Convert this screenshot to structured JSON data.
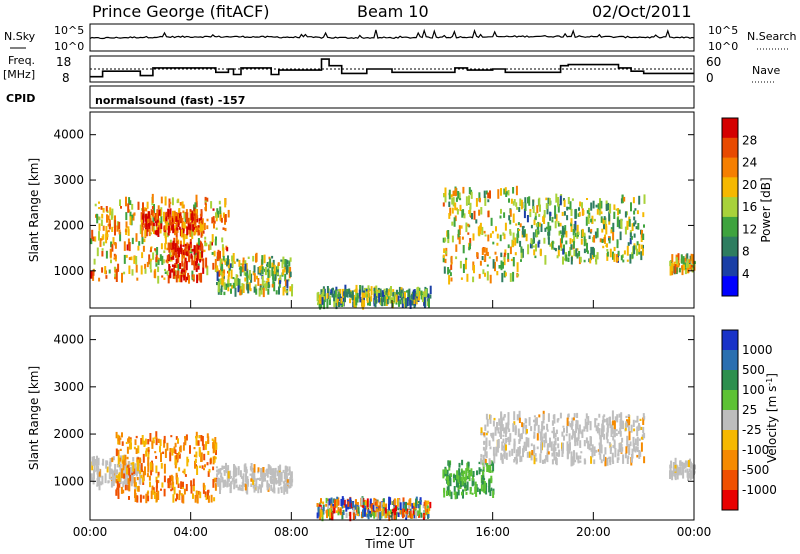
{
  "header": {
    "station": "Prince George (fitACF)",
    "beam": "Beam 10",
    "date": "02/Oct/2011"
  },
  "aux": {
    "nsky_label": "N.Sky",
    "nsearch_label": "N.Search",
    "noise_ticks_left": [
      "10^5",
      "10^0"
    ],
    "noise_ticks_right": [
      "10^5",
      "10^0"
    ],
    "freq_label_1": "Freq.",
    "freq_label_2": "[MHz]",
    "freq_ticks": [
      "18",
      "8"
    ],
    "nave_label": "Nave",
    "nave_ticks": [
      "60",
      "0"
    ],
    "cpid_label": "CPID",
    "cpid_text": "normalsound (fast) -157"
  },
  "colors": {
    "power_scale": [
      "#0000ff",
      "#1a3fa6",
      "#2e7d60",
      "#3ea33e",
      "#a8d23a",
      "#f5b800",
      "#f57f00",
      "#e84a00",
      "#d40000"
    ],
    "velocity_scale": [
      "#1933c8",
      "#2a6fb0",
      "#2d8f4e",
      "#5ec234",
      "#bdbdbd",
      "#f5b800",
      "#f58a00",
      "#ef5000",
      "#e80000"
    ],
    "ground_scatter": "#bebebe"
  },
  "chart_data": [
    {
      "type": "line",
      "title": "",
      "xlabel": "",
      "ylabel": "",
      "x_range": [
        "00:00",
        "24:00"
      ],
      "series": [
        {
          "name": "N.Sky",
          "values": [
            [
              0,
              2.2
            ],
            [
              2,
              2.4
            ],
            [
              4,
              2.5
            ],
            [
              6,
              2.5
            ],
            [
              8,
              2.4
            ],
            [
              10,
              2.3
            ],
            [
              12,
              2.3
            ],
            [
              14,
              2.4
            ],
            [
              16,
              2.5
            ],
            [
              18,
              2.6
            ],
            [
              20,
              2.5
            ],
            [
              22,
              2.4
            ],
            [
              24,
              2.3
            ]
          ]
        }
      ]
    },
    {
      "type": "line",
      "title": "",
      "ylabel": "",
      "x": [
        0.0,
        0.5,
        1.5,
        2.0,
        2.5,
        4.5,
        5.0,
        5.5,
        5.7,
        6.0,
        7.0,
        7.2,
        7.5,
        9.0,
        9.2,
        9.5,
        9.8,
        10.0,
        11.0,
        11.5,
        12.0,
        14.5,
        15.0,
        16.0,
        16.5,
        18.5,
        18.7,
        19.0,
        20.0,
        21.0,
        21.5,
        22.0,
        24.0
      ],
      "series": [
        {
          "name": "Freq.",
          "values": [
            9.5,
            12.0,
            12.0,
            10.0,
            13.5,
            13.5,
            11.5,
            13.0,
            10.5,
            13.5,
            13.5,
            10.5,
            12.5,
            12.5,
            17.5,
            14.5,
            14.5,
            11.0,
            13.0,
            13.0,
            11.5,
            13.5,
            12.5,
            13.0,
            11.5,
            11.5,
            14.5,
            15.0,
            15.0,
            13.5,
            12.0,
            11.0,
            11.0
          ]
        },
        {
          "name": "Nave",
          "values": [
            30,
            30,
            30,
            30,
            30,
            30,
            30,
            30,
            30,
            30,
            30,
            30,
            30,
            30,
            30,
            30,
            30,
            30,
            30,
            30,
            30,
            30,
            30,
            30,
            30,
            30,
            30,
            30,
            30,
            30,
            30,
            30,
            30
          ]
        }
      ],
      "ylim": [
        8,
        18
      ]
    },
    {
      "type": "heatmap",
      "title": "",
      "xlabel": "Time UT",
      "ylabel": "Slant Range [km]",
      "x_ticks": [
        "00:00",
        "04:00",
        "08:00",
        "12:00",
        "16:00",
        "20:00",
        "00:00"
      ],
      "y_ticks": [
        "1000",
        "2000",
        "3000",
        "4000"
      ],
      "ylim": [
        180,
        4500
      ],
      "colorbar_label": "Power [dB]",
      "colorbar_ticks": [
        "4",
        "8",
        "12",
        "16",
        "20",
        "24",
        "28"
      ],
      "regions": [
        {
          "t": [
            0.0,
            5.5
          ],
          "r": [
            800,
            2600
          ],
          "level": 0.65
        },
        {
          "t": [
            2.0,
            4.5
          ],
          "r": [
            1800,
            2300
          ],
          "level": 0.85
        },
        {
          "t": [
            3.0,
            4.5
          ],
          "r": [
            800,
            1600
          ],
          "level": 0.95
        },
        {
          "t": [
            5.0,
            8.0
          ],
          "r": [
            500,
            1300
          ],
          "level": 0.45
        },
        {
          "t": [
            9.0,
            13.5
          ],
          "r": [
            250,
            600
          ],
          "level": 0.4
        },
        {
          "t": [
            14.0,
            17.0
          ],
          "r": [
            800,
            2800
          ],
          "level": 0.55
        },
        {
          "t": [
            17.0,
            22.0
          ],
          "r": [
            1200,
            2600
          ],
          "level": 0.45
        },
        {
          "t": [
            23.0,
            24.0
          ],
          "r": [
            1000,
            1300
          ],
          "level": 0.55
        }
      ]
    },
    {
      "type": "heatmap",
      "title": "",
      "xlabel": "Time UT",
      "ylabel": "Slant Range [km]",
      "x_ticks": [
        "00:00",
        "04:00",
        "08:00",
        "12:00",
        "16:00",
        "20:00",
        "00:00"
      ],
      "y_ticks": [
        "1000",
        "2000",
        "3000",
        "4000"
      ],
      "ylim": [
        180,
        4500
      ],
      "colorbar_label": "Velocity [m s^-1]",
      "colorbar_ticks": [
        "1000",
        "500",
        "100",
        "25",
        "-25",
        "-100",
        "-500",
        "-1000"
      ],
      "regions": [
        {
          "t": [
            0.0,
            2.0
          ],
          "r": [
            900,
            1500
          ],
          "kind": "ground"
        },
        {
          "t": [
            1.0,
            5.0
          ],
          "r": [
            600,
            2000
          ],
          "kind": "neg"
        },
        {
          "t": [
            5.0,
            8.0
          ],
          "r": [
            800,
            1300
          ],
          "kind": "ground"
        },
        {
          "t": [
            9.0,
            13.5
          ],
          "r": [
            250,
            600
          ],
          "kind": "mixed"
        },
        {
          "t": [
            14.0,
            16.0
          ],
          "r": [
            700,
            1400
          ],
          "kind": "pos"
        },
        {
          "t": [
            15.5,
            22.0
          ],
          "r": [
            1400,
            2400
          ],
          "kind": "ground"
        },
        {
          "t": [
            23.0,
            24.0
          ],
          "r": [
            1100,
            1400
          ],
          "kind": "ground"
        }
      ]
    }
  ]
}
